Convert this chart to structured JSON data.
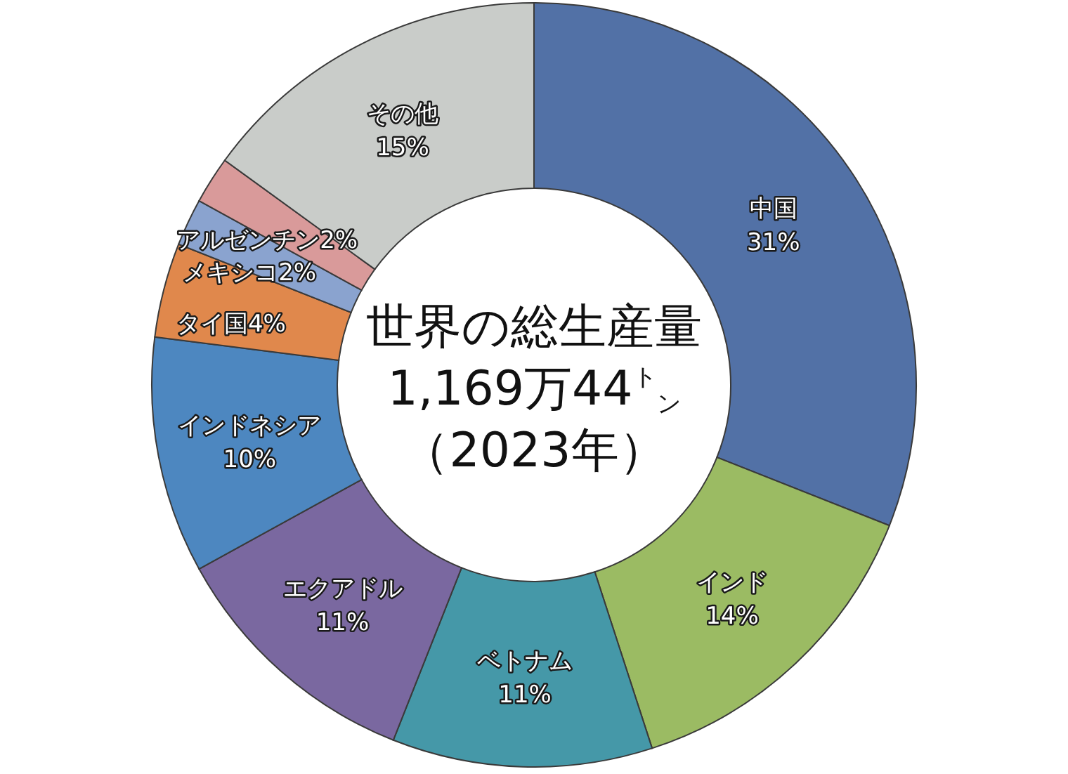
{
  "chart_data": {
    "type": "donut",
    "title": "世界の総生産量",
    "subtitle": "1,169万44$^{ト}$$_{ン}$",
    "annotations": [
      "（2023年）"
    ],
    "categories": [
      "中国",
      "インド",
      "ベトナム",
      "エクアドル",
      "インドネシア",
      "タイ国",
      "メキシコ",
      "アルゼンチン",
      "その他"
    ],
    "values": [
      31,
      14,
      11,
      11,
      10,
      4,
      2,
      2,
      15
    ],
    "value_labels": [
      "31%",
      "14%",
      "11%",
      "11%",
      "10%",
      "4%",
      "2%",
      "2%",
      "15%"
    ],
    "colors": [
      "#5271a6",
      "#9bbb63",
      "#4598a8",
      "#7a68a0",
      "#4d87c0",
      "#e0884c",
      "#8aa3cf",
      "#d99a9a",
      "#c9ccc9"
    ]
  }
}
